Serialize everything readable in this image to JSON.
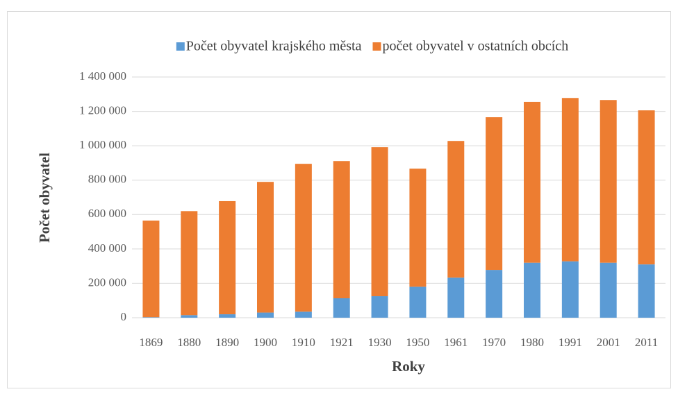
{
  "chart_data": {
    "type": "stacked_bar",
    "x_label": "Roky",
    "y_label": "Počet obyvatel",
    "categories": [
      "1869",
      "1880",
      "1890",
      "1900",
      "1910",
      "1921",
      "1930",
      "1950",
      "1961",
      "1970",
      "1980",
      "1991",
      "2001",
      "2011"
    ],
    "series": [
      {
        "name": "Počet obyvatel krajského města",
        "color": "#5b9bd5",
        "values": [
          3000,
          15000,
          20000,
          30000,
          35000,
          113000,
          125000,
          180000,
          233000,
          278000,
          320000,
          328000,
          320000,
          310000
        ]
      },
      {
        "name": "počet obyvatel v ostatních obcích",
        "color": "#ed7d31",
        "values": [
          562000,
          605000,
          658000,
          760000,
          860000,
          798000,
          867000,
          687000,
          795000,
          888000,
          935000,
          950000,
          946000,
          896000
        ]
      }
    ],
    "ylim": [
      0,
      1400000
    ],
    "yticks": [
      0,
      {
        "value": 200000,
        "label": "200 000"
      },
      {
        "value": 400000,
        "label": "400 000"
      },
      {
        "value": 600000,
        "label": "600 000"
      },
      {
        "value": 800000,
        "label": "800 000"
      },
      {
        "value": 1000000,
        "label": "1 000 000"
      },
      {
        "value": 1200000,
        "label": "1 200 000"
      },
      {
        "value": 1400000,
        "label": "1 400 000"
      }
    ],
    "grid": true,
    "legend": "top"
  }
}
